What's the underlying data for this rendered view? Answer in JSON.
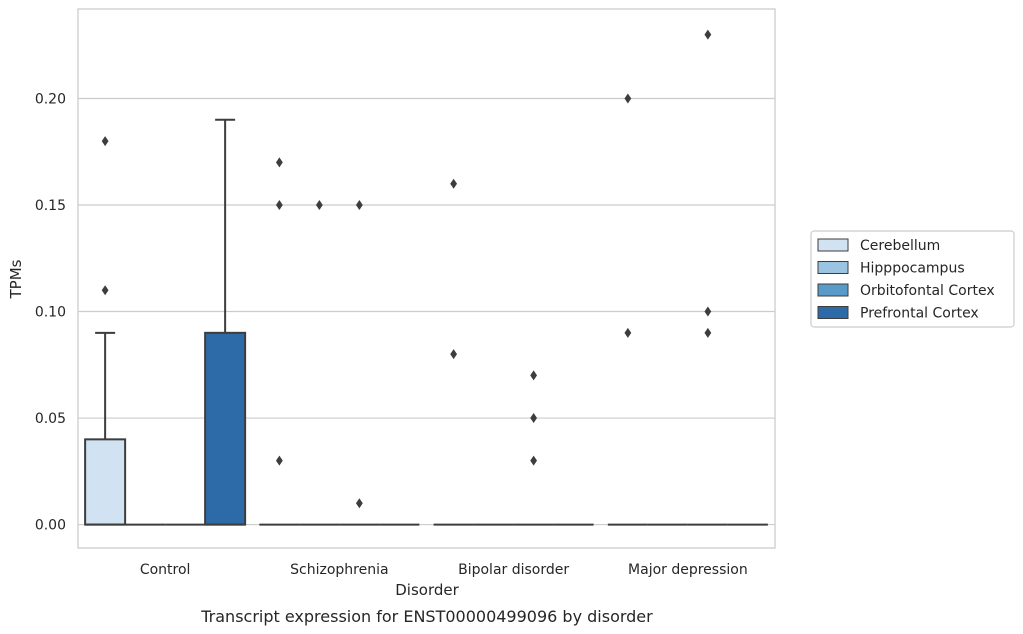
{
  "chart_data": {
    "type": "box",
    "caption": "Transcript expression for ENST00000499096 by disorder",
    "xlabel": "Disorder",
    "ylabel": "TPMs",
    "ylim": [
      -0.011,
      0.242
    ],
    "yticks": [
      "0.00",
      "0.05",
      "0.10",
      "0.15",
      "0.20"
    ],
    "ytick_values": [
      0,
      0.05,
      0.1,
      0.15,
      0.2
    ],
    "grid": true,
    "legend_position": "right",
    "categories": [
      "Control",
      "Schizophrenia",
      "Bipolar disorder",
      "Major depression"
    ],
    "series": [
      {
        "name": "Cerebellum",
        "color": "#d1e2f2",
        "boxes": [
          {
            "q1": 0,
            "median": 0,
            "q3": 0.04,
            "whisker_low": 0,
            "whisker_high": 0.09,
            "outliers": [
              0.11,
              0.18
            ]
          },
          {
            "q1": 0,
            "median": 0,
            "q3": 0,
            "whisker_low": 0,
            "whisker_high": 0,
            "outliers": [
              0.03,
              0.15,
              0.17
            ]
          },
          {
            "q1": 0,
            "median": 0,
            "q3": 0,
            "whisker_low": 0,
            "whisker_high": 0,
            "outliers": [
              0.08,
              0.16
            ]
          },
          {
            "q1": 0,
            "median": 0,
            "q3": 0,
            "whisker_low": 0,
            "whisker_high": 0,
            "outliers": [
              0.09,
              0.2
            ]
          }
        ]
      },
      {
        "name": "Hipppocampus",
        "color": "#9ac4e1",
        "boxes": [
          {
            "q1": 0,
            "median": 0,
            "q3": 0,
            "whisker_low": 0,
            "whisker_high": 0,
            "outliers": []
          },
          {
            "q1": 0,
            "median": 0,
            "q3": 0,
            "whisker_low": 0,
            "whisker_high": 0,
            "outliers": [
              0.15
            ]
          },
          {
            "q1": 0,
            "median": 0,
            "q3": 0,
            "whisker_low": 0,
            "whisker_high": 0,
            "outliers": []
          },
          {
            "q1": 0,
            "median": 0,
            "q3": 0,
            "whisker_low": 0,
            "whisker_high": 0,
            "outliers": []
          }
        ]
      },
      {
        "name": "Orbitofontal Cortex",
        "color": "#5a9ac8",
        "boxes": [
          {
            "q1": 0,
            "median": 0,
            "q3": 0,
            "whisker_low": 0,
            "whisker_high": 0,
            "outliers": []
          },
          {
            "q1": 0,
            "median": 0,
            "q3": 0,
            "whisker_low": 0,
            "whisker_high": 0,
            "outliers": [
              0.01,
              0.15
            ]
          },
          {
            "q1": 0,
            "median": 0,
            "q3": 0,
            "whisker_low": 0,
            "whisker_high": 0,
            "outliers": [
              0.03,
              0.05,
              0.07
            ]
          },
          {
            "q1": 0,
            "median": 0,
            "q3": 0,
            "whisker_low": 0,
            "whisker_high": 0,
            "outliers": [
              0.09,
              0.1,
              0.23
            ]
          }
        ]
      },
      {
        "name": "Prefrontal Cortex",
        "color": "#2c6ba8",
        "boxes": [
          {
            "q1": 0,
            "median": 0,
            "q3": 0.09,
            "whisker_low": 0,
            "whisker_high": 0.19,
            "outliers": []
          },
          {
            "q1": 0,
            "median": 0,
            "q3": 0,
            "whisker_low": 0,
            "whisker_high": 0,
            "outliers": []
          },
          {
            "q1": 0,
            "median": 0,
            "q3": 0,
            "whisker_low": 0,
            "whisker_high": 0,
            "outliers": []
          },
          {
            "q1": 0,
            "median": 0,
            "q3": 0,
            "whisker_low": 0,
            "whisker_high": 0,
            "outliers": []
          }
        ]
      }
    ]
  }
}
